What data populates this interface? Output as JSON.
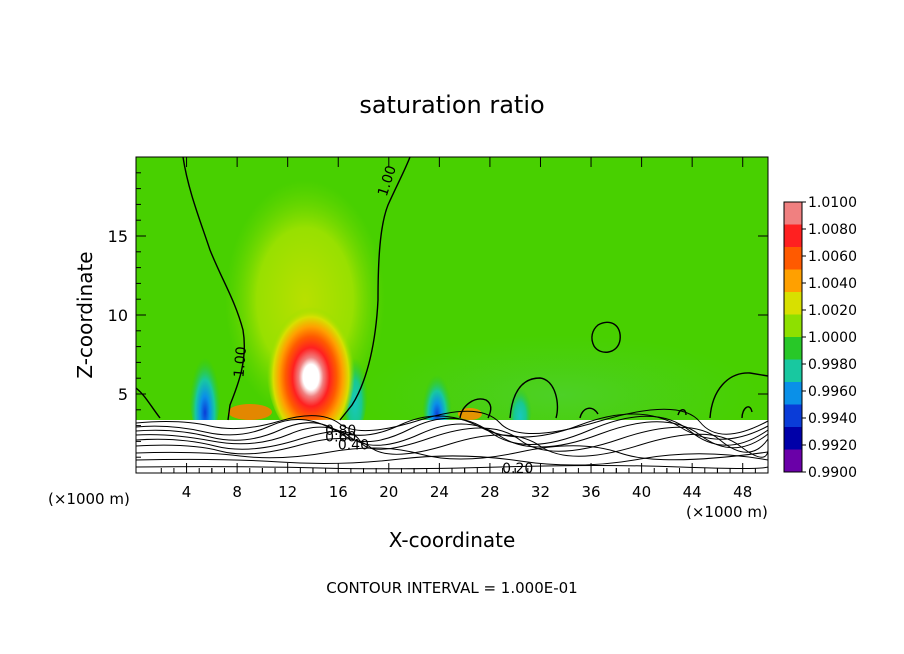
{
  "chart_data": {
    "type": "heatmap",
    "title": "saturation ratio",
    "xlabel": "X-coordinate",
    "ylabel": "Z-coordinate",
    "x_unit_left": "(×1000 m)",
    "x_unit_right": "(×1000 m)",
    "xlim": [
      0,
      50
    ],
    "ylim": [
      0,
      20
    ],
    "x_ticks": [
      4,
      8,
      12,
      16,
      20,
      24,
      28,
      32,
      36,
      40,
      44,
      48
    ],
    "y_ticks": [
      5,
      10,
      15
    ],
    "footer": "CONTOUR INTERVAL = 1.000E-01",
    "colorbar": {
      "levels": [
        "1.0100",
        "1.0080",
        "1.0060",
        "1.0040",
        "1.0020",
        "1.0000",
        "0.9980",
        "0.9960",
        "0.9940",
        "0.9920",
        "0.9900"
      ],
      "colors": [
        "#f08080",
        "#ff2020",
        "#ff5a00",
        "#ffa000",
        "#d8e000",
        "#8ee000",
        "#28c828",
        "#18c8a0",
        "#0a90e8",
        "#0a3cd8",
        "#0000a8",
        "#6a00a8"
      ]
    },
    "contour_labels": [
      {
        "text": "1.00",
        "x": 20.2,
        "y": 18.4,
        "rot": -72
      },
      {
        "text": "1.00",
        "x": 8.6,
        "y": 7.0,
        "rot": -85
      },
      {
        "text": "0.80",
        "x": 16.2,
        "y": 2.4,
        "rot": 0
      },
      {
        "text": "0.60",
        "x": 16.2,
        "y": 2.0,
        "rot": 0
      },
      {
        "text": "0.40",
        "x": 17.2,
        "y": 1.5,
        "rot": 0
      },
      {
        "text": "0.20",
        "x": 30.2,
        "y": 0.0,
        "rot": 0
      }
    ]
  }
}
